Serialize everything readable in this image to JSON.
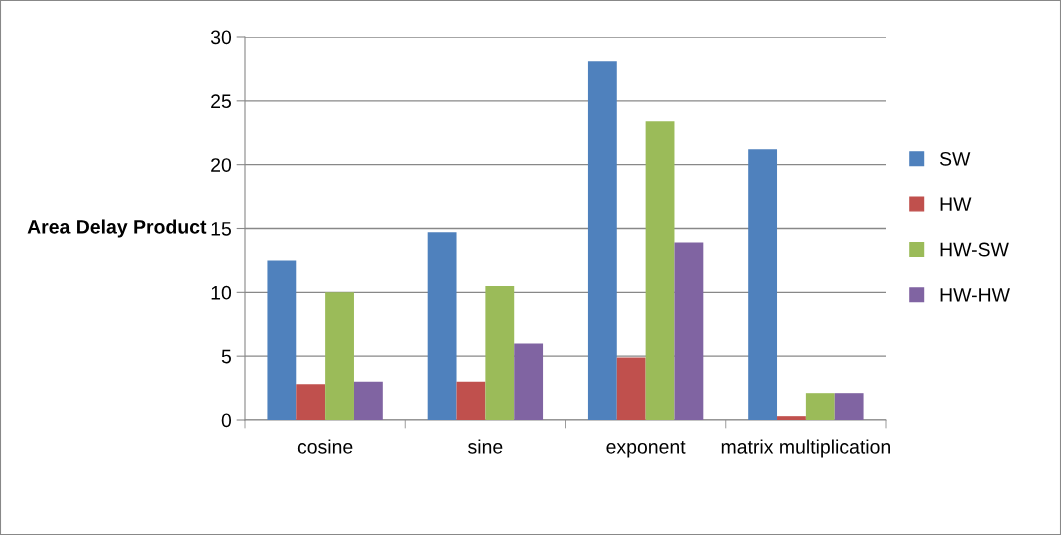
{
  "chart_data": {
    "type": "bar",
    "ylabel": "Area Delay Product",
    "categories": [
      "cosine",
      "sine",
      "exponent",
      "matrix multiplication"
    ],
    "series": [
      {
        "name": "SW",
        "color": "#4f81bd",
        "values": [
          12.5,
          14.7,
          28.1,
          21.2
        ]
      },
      {
        "name": "HW",
        "color": "#c0504d",
        "values": [
          2.8,
          3.0,
          4.9,
          0.3
        ]
      },
      {
        "name": "HW-SW",
        "color": "#9bbb59",
        "values": [
          10.0,
          10.5,
          23.4,
          2.1
        ]
      },
      {
        "name": "HW-HW",
        "color": "#8064a2",
        "values": [
          3.0,
          6.0,
          13.9,
          2.1
        ]
      }
    ],
    "ylim": [
      0,
      30
    ],
    "yticks": [
      0,
      5,
      10,
      15,
      20,
      25,
      30
    ],
    "grid": "y",
    "legend": "right"
  }
}
